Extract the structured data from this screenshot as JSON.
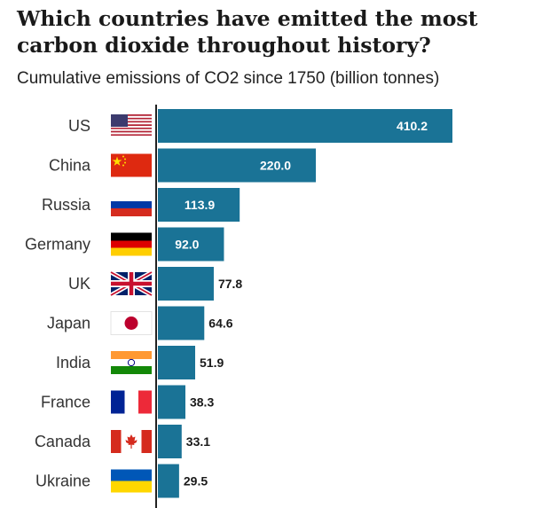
{
  "chart_data": {
    "type": "bar",
    "orientation": "horizontal",
    "title": "Which countries have emitted the most carbon dioxide throughout history?",
    "subtitle": "Cumulative emissions of CO2 since 1750 (billion tonnes)",
    "categories": [
      "US",
      "China",
      "Russia",
      "Germany",
      "UK",
      "Japan",
      "India",
      "France",
      "Canada",
      "Ukraine"
    ],
    "values": [
      410.2,
      220.0,
      113.9,
      92.0,
      77.8,
      64.6,
      51.9,
      38.3,
      33.1,
      29.5
    ],
    "value_labels": [
      "410.2",
      "220.0",
      "113.9",
      "92.0",
      "77.8",
      "64.6",
      "51.9",
      "38.3",
      "33.1",
      "29.5"
    ],
    "flag_icons": [
      "us-flag-icon",
      "china-flag-icon",
      "russia-flag-icon",
      "germany-flag-icon",
      "uk-flag-icon",
      "japan-flag-icon",
      "india-flag-icon",
      "france-flag-icon",
      "canada-flag-icon",
      "ukraine-flag-icon"
    ],
    "colors": {
      "bar": "#1a7396",
      "label_inside": "#ffffff",
      "label_outside": "#1a1a1a",
      "axis": "#222222"
    },
    "xlim": [
      0,
      410.2
    ],
    "grid": false,
    "legend": "none"
  }
}
